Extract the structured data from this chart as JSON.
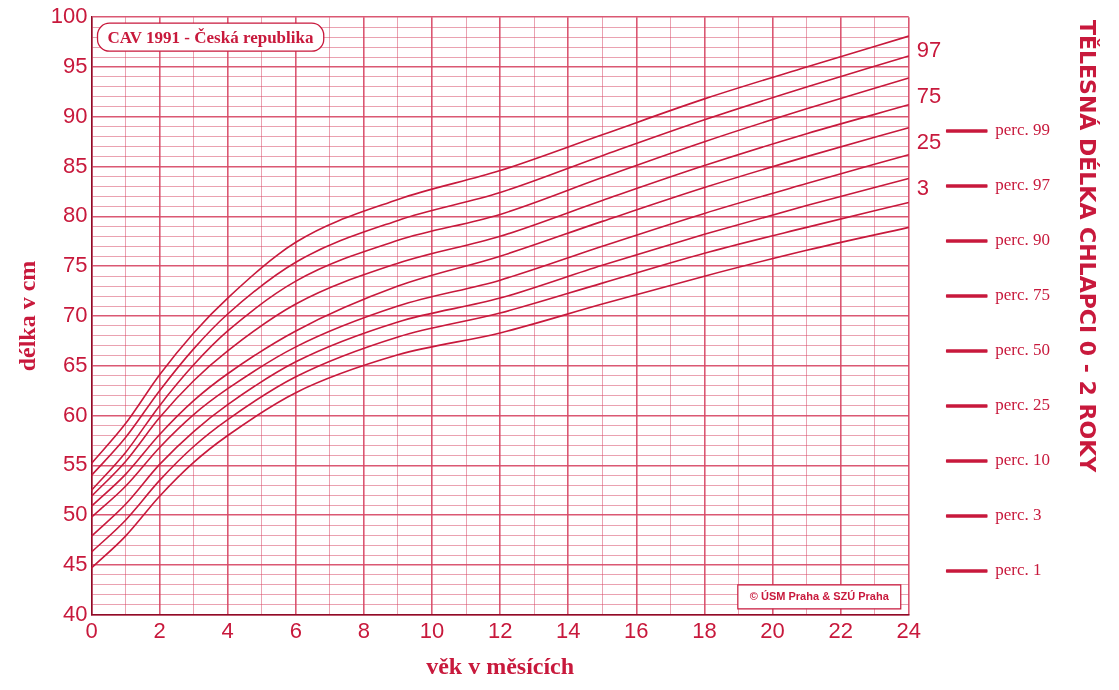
{
  "chart_data": {
    "type": "line",
    "title": "TĚLESNÁ DÉLKA CHLAPCI 0 - 2 ROKY",
    "subtitle": "CAV 1991 - Česká republika",
    "xlabel": "věk v měsících",
    "ylabel": "délka v cm",
    "x": [
      0,
      1,
      2,
      3,
      4,
      6,
      9,
      12,
      15,
      18,
      21,
      24
    ],
    "series": [
      {
        "name": "perc. 99",
        "color": "#c8193c",
        "values": [
          55.2,
          59.2,
          64.1,
          68.3,
          71.8,
          77.4,
          81.7,
          84.6,
          88.2,
          91.8,
          95.0,
          98.1
        ]
      },
      {
        "name": "perc. 97",
        "color": "#c8193c",
        "values": [
          54.0,
          57.8,
          62.5,
          66.7,
          70.2,
          75.4,
          79.6,
          82.4,
          86.1,
          89.7,
          93.0,
          96.1
        ]
      },
      {
        "name": "perc. 90",
        "color": "#c8193c",
        "values": [
          52.5,
          56.3,
          61.0,
          65.1,
          68.5,
          73.5,
          77.6,
          80.2,
          83.9,
          87.5,
          90.8,
          93.9
        ]
      },
      {
        "name": "perc. 75",
        "color": "#c8193c",
        "values": [
          51.9,
          55.4,
          59.8,
          63.5,
          66.5,
          71.2,
          75.3,
          78.0,
          81.6,
          85.1,
          88.3,
          91.2
        ]
      },
      {
        "name": "perc. 50",
        "color": "#c8193c",
        "values": [
          50.9,
          54.1,
          58.1,
          61.5,
          64.2,
          68.5,
          73.0,
          76.0,
          79.5,
          82.9,
          86.0,
          88.9
        ]
      },
      {
        "name": "perc. 25",
        "color": "#c8193c",
        "values": [
          49.8,
          52.9,
          56.8,
          60.1,
          62.7,
          66.9,
          71.0,
          73.6,
          77.0,
          80.3,
          83.3,
          86.2
        ]
      },
      {
        "name": "perc. 10",
        "color": "#c8193c",
        "values": [
          47.9,
          51.1,
          55.1,
          58.4,
          61.1,
          65.4,
          69.4,
          71.8,
          75.1,
          78.2,
          81.1,
          83.8
        ]
      },
      {
        "name": "perc. 3",
        "color": "#c8193c",
        "values": [
          46.3,
          49.5,
          53.5,
          56.9,
          59.6,
          63.9,
          67.9,
          70.3,
          73.3,
          76.3,
          78.9,
          81.4
        ]
      },
      {
        "name": "perc. 1",
        "color": "#c8193c",
        "values": [
          44.7,
          47.9,
          51.9,
          55.3,
          58.0,
          62.3,
          66.1,
          68.3,
          71.2,
          74.0,
          76.6,
          78.9
        ]
      }
    ],
    "xlim": [
      0,
      24
    ],
    "xticks": [
      0,
      {
        "value": 1,
        "label": null
      },
      2,
      {
        "value": 3,
        "label": null
      },
      4,
      {
        "value": 5,
        "label": null
      },
      6,
      {
        "value": 7,
        "label": null
      },
      8,
      {
        "value": 9,
        "label": null
      },
      10,
      {
        "value": 11,
        "label": null
      },
      12,
      {
        "value": 13,
        "label": null
      },
      14,
      {
        "value": 15,
        "label": null
      },
      16,
      {
        "value": 17,
        "label": null
      },
      18,
      {
        "value": 19,
        "label": null
      },
      20,
      {
        "value": 21,
        "label": null
      },
      22,
      {
        "value": 23,
        "label": null
      },
      24
    ],
    "ylim": [
      40,
      100
    ],
    "yticks": [
      40,
      {
        "value": 41,
        "label": null
      },
      {
        "value": 42,
        "label": null
      },
      {
        "value": 43,
        "label": null
      },
      {
        "value": 44,
        "label": null
      },
      45,
      {
        "value": 46,
        "label": null
      },
      {
        "value": 47,
        "label": null
      },
      {
        "value": 48,
        "label": null
      },
      {
        "value": 49,
        "label": null
      },
      50,
      {
        "value": 51,
        "label": null
      },
      {
        "value": 52,
        "label": null
      },
      {
        "value": 53,
        "label": null
      },
      {
        "value": 54,
        "label": null
      },
      55,
      {
        "value": 56,
        "label": null
      },
      {
        "value": 57,
        "label": null
      },
      {
        "value": 58,
        "label": null
      },
      {
        "value": 59,
        "label": null
      },
      60,
      {
        "value": 61,
        "label": null
      },
      {
        "value": 62,
        "label": null
      },
      {
        "value": 63,
        "label": null
      },
      {
        "value": 64,
        "label": null
      },
      65,
      {
        "value": 66,
        "label": null
      },
      {
        "value": 67,
        "label": null
      },
      {
        "value": 68,
        "label": null
      },
      {
        "value": 69,
        "label": null
      },
      70,
      {
        "value": 71,
        "label": null
      },
      {
        "value": 72,
        "label": null
      },
      {
        "value": 73,
        "label": null
      },
      {
        "value": 74,
        "label": null
      },
      75,
      {
        "value": 76,
        "label": null
      },
      {
        "value": 77,
        "label": null
      },
      {
        "value": 78,
        "label": null
      },
      {
        "value": 79,
        "label": null
      },
      80,
      {
        "value": 81,
        "label": null
      },
      {
        "value": 82,
        "label": null
      },
      {
        "value": 83,
        "label": null
      },
      {
        "value": 84,
        "label": null
      },
      85,
      {
        "value": 86,
        "label": null
      },
      {
        "value": 87,
        "label": null
      },
      {
        "value": 88,
        "label": null
      },
      {
        "value": 89,
        "label": null
      },
      90,
      {
        "value": 91,
        "label": null
      },
      {
        "value": 92,
        "label": null
      },
      {
        "value": 93,
        "label": null
      },
      {
        "value": 94,
        "label": null
      },
      95,
      {
        "value": 96,
        "label": null
      },
      {
        "value": 97,
        "label": null
      },
      {
        "value": 98,
        "label": null
      },
      {
        "value": 99,
        "label": null
      },
      100
    ],
    "grid": true,
    "legend": "right",
    "marker": "none",
    "line_style": "solid",
    "annotations": [
      "97",
      "75",
      "25",
      "3",
      "© ÚSM Praha & SZÚ Praha"
    ]
  }
}
